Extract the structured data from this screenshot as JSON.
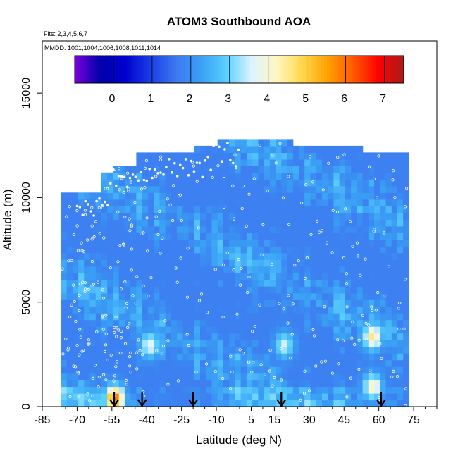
{
  "chart_data": {
    "type": "heatmap",
    "title": "ATOM3 Southbound AOA",
    "annotations": [
      "Flts: 2,3,4,5,6,7",
      "MMDD: 1001,1004,1006,1008,1011,1014"
    ],
    "xlabel": "Latitude (deg N)",
    "ylabel": "Altitude (m)",
    "xlim": [
      -85,
      85
    ],
    "ylim": [
      0,
      17500
    ],
    "x_ticks": [
      -85,
      -70,
      -55,
      -40,
      -25,
      -10,
      5,
      15,
      30,
      45,
      60,
      75
    ],
    "x_tick_labels": [
      "-85",
      "-70",
      "-55",
      "-40",
      "-25",
      "-10",
      "5",
      "15",
      "30",
      "45",
      "60",
      "75"
    ],
    "y_ticks": [
      0,
      5000,
      10000,
      15000
    ],
    "y_tick_labels": [
      "0",
      "5000",
      "10000",
      "15000"
    ],
    "colorbar": {
      "range": [
        -1,
        7.5
      ],
      "ticks": [
        0,
        1,
        2,
        3,
        4,
        5,
        6,
        7
      ],
      "tick_labels": [
        "0",
        "1",
        "2",
        "3",
        "4",
        "5",
        "6",
        "7"
      ],
      "colors": [
        "#7a00e0",
        "#0000a8",
        "#0000d0",
        "#1a3fe6",
        "#3c78f0",
        "#3aa0f4",
        "#5ad0ff",
        "#dff4ff",
        "#fff6c0",
        "#ffd84a",
        "#ffa000",
        "#ff5a00",
        "#ff0000",
        "#a81d1d"
      ]
    },
    "arrows_x": [
      -54,
      -42,
      -20,
      18,
      61
    ],
    "data_extent": {
      "x_min": -77,
      "x_max": 72,
      "top_altitude": [
        [
          -77,
          10000
        ],
        [
          -70,
          10100
        ],
        [
          -62,
          10900
        ],
        [
          -55,
          11500
        ],
        [
          -47,
          12100
        ],
        [
          -37,
          12000
        ],
        [
          -20,
          12300
        ],
        [
          -12,
          12800
        ],
        [
          0,
          12800
        ],
        [
          15,
          12800
        ],
        [
          22,
          12400
        ],
        [
          38,
          12400
        ],
        [
          49,
          12400
        ],
        [
          52,
          12100
        ],
        [
          65,
          12100
        ],
        [
          72,
          11000
        ]
      ]
    },
    "hot_spots": [
      {
        "lat": 56,
        "alt": 3200,
        "value": 4.8
      },
      {
        "lat": 56,
        "alt": 800,
        "value": 4.5
      },
      {
        "lat": -55,
        "alt": 250,
        "value": 6.2
      },
      {
        "lat": -40,
        "alt": 2800,
        "value": 4.0
      },
      {
        "lat": 18,
        "alt": 2800,
        "value": 3.8
      }
    ]
  }
}
